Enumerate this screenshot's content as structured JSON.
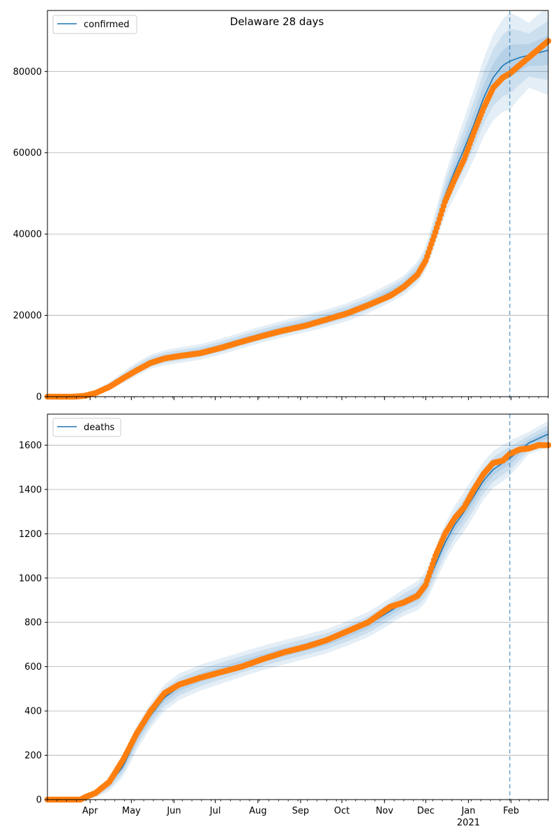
{
  "figure": {
    "title": "Delaware 28 days"
  },
  "colors": {
    "fit_line": "#1f77b4",
    "band": "#1f77b4",
    "observed": "#ff7f0e",
    "grid": "#b0b0b0",
    "forecast_line": "#1f77b4"
  },
  "chart_data": [
    {
      "type": "line",
      "name": "confirmed-panel",
      "legend": {
        "label": "confirmed",
        "placement": "upper-left"
      },
      "grid": "horizontal",
      "xlim": [
        "2020-03-01",
        "2021-02-28"
      ],
      "ylim": [
        0,
        95000
      ],
      "yticks": [
        0,
        20000,
        40000,
        60000,
        80000
      ],
      "forecast_start": "2021-01-31",
      "series": [
        {
          "name": "confirmed",
          "style": "model-fit-line",
          "x": [
            "2020-03-01",
            "2020-03-20",
            "2020-03-28",
            "2020-04-05",
            "2020-04-15",
            "2020-04-25",
            "2020-05-05",
            "2020-05-15",
            "2020-05-25",
            "2020-06-05",
            "2020-06-20",
            "2020-07-05",
            "2020-07-20",
            "2020-08-05",
            "2020-08-20",
            "2020-09-05",
            "2020-09-20",
            "2020-10-05",
            "2020-10-20",
            "2020-11-05",
            "2020-11-15",
            "2020-11-25",
            "2020-12-01",
            "2020-12-08",
            "2020-12-15",
            "2020-12-22",
            "2020-12-29",
            "2021-01-05",
            "2021-01-12",
            "2021-01-19",
            "2021-01-26",
            "2021-01-31",
            "2021-02-07",
            "2021-02-14",
            "2021-02-21",
            "2021-02-28"
          ],
          "y": [
            0,
            0,
            300,
            1100,
            2600,
            4700,
            6800,
            8600,
            9600,
            10200,
            11000,
            12300,
            13800,
            15400,
            16700,
            18000,
            19300,
            20800,
            22800,
            25500,
            27400,
            30500,
            34000,
            41500,
            49500,
            55500,
            61000,
            67000,
            73500,
            78500,
            81500,
            82500,
            83400,
            84000,
            84600,
            85200
          ]
        },
        {
          "name": "confirmed observed",
          "style": "observed-markers",
          "x": [
            "2020-03-01",
            "2020-03-20",
            "2020-03-28",
            "2020-04-05",
            "2020-04-15",
            "2020-04-25",
            "2020-05-05",
            "2020-05-15",
            "2020-05-25",
            "2020-06-05",
            "2020-06-20",
            "2020-07-05",
            "2020-07-20",
            "2020-08-05",
            "2020-08-20",
            "2020-09-05",
            "2020-09-20",
            "2020-10-05",
            "2020-10-20",
            "2020-11-05",
            "2020-11-15",
            "2020-11-25",
            "2020-12-01",
            "2020-12-08",
            "2020-12-15",
            "2020-12-22",
            "2020-12-29",
            "2021-01-05",
            "2021-01-12",
            "2021-01-19",
            "2021-01-26",
            "2021-01-31",
            "2021-02-07",
            "2021-02-14",
            "2021-02-21",
            "2021-02-28"
          ],
          "y": [
            0,
            0,
            200,
            900,
            2400,
            4500,
            6500,
            8300,
            9400,
            10000,
            10700,
            12000,
            13500,
            15000,
            16300,
            17500,
            19000,
            20500,
            22500,
            24800,
            27000,
            30000,
            33500,
            40500,
            48000,
            53500,
            58500,
            65000,
            71000,
            76000,
            78500,
            79500,
            81500,
            83500,
            85500,
            87500
          ]
        }
      ],
      "band_half_widths": {
        "x": [
          "2020-03-01",
          "2020-04-01",
          "2020-05-01",
          "2020-06-01",
          "2020-08-01",
          "2020-10-01",
          "2020-11-15",
          "2020-12-01",
          "2020-12-15",
          "2021-01-01",
          "2021-01-15",
          "2021-01-31",
          "2021-02-14",
          "2021-02-28"
        ],
        "outer": [
          0,
          400,
          1600,
          1900,
          2000,
          2200,
          2400,
          3000,
          5000,
          8000,
          10000,
          12000,
          8000,
          11000
        ],
        "middle": [
          0,
          260,
          1050,
          1250,
          1300,
          1450,
          1600,
          2000,
          3300,
          5300,
          6600,
          8000,
          5300,
          7300
        ],
        "inner": [
          0,
          130,
          520,
          620,
          650,
          720,
          800,
          1000,
          1650,
          2650,
          3300,
          4000,
          2650,
          3650
        ]
      }
    },
    {
      "type": "line",
      "name": "deaths-panel",
      "legend": {
        "label": "deaths",
        "placement": "upper-left"
      },
      "grid": "horizontal",
      "xlim": [
        "2020-03-01",
        "2021-02-28"
      ],
      "ylim": [
        0,
        1740
      ],
      "yticks": [
        0,
        200,
        400,
        600,
        800,
        1000,
        1200,
        1400,
        1600
      ],
      "forecast_start": "2021-01-31",
      "xtick_labels": [
        "Apr",
        "May",
        "Jun",
        "Jul",
        "Aug",
        "Sep",
        "Oct",
        "Nov",
        "Dec",
        "Jan",
        "Feb"
      ],
      "xtick_dates": [
        "2020-04-01",
        "2020-05-01",
        "2020-06-01",
        "2020-07-01",
        "2020-08-01",
        "2020-09-01",
        "2020-10-01",
        "2020-11-01",
        "2020-12-01",
        "2021-01-01",
        "2021-02-01"
      ],
      "xtick_year_label": "2021",
      "series": [
        {
          "name": "deaths",
          "style": "model-fit-line",
          "x": [
            "2020-03-01",
            "2020-03-28",
            "2020-04-05",
            "2020-04-15",
            "2020-04-25",
            "2020-05-05",
            "2020-05-15",
            "2020-05-25",
            "2020-06-05",
            "2020-06-20",
            "2020-07-05",
            "2020-07-20",
            "2020-08-05",
            "2020-08-20",
            "2020-09-05",
            "2020-09-20",
            "2020-10-05",
            "2020-10-20",
            "2020-11-05",
            "2020-11-15",
            "2020-11-25",
            "2020-12-01",
            "2020-12-08",
            "2020-12-15",
            "2020-12-22",
            "2020-12-29",
            "2021-01-05",
            "2021-01-12",
            "2021-01-19",
            "2021-01-26",
            "2021-01-31",
            "2021-02-07",
            "2021-02-14",
            "2021-02-21",
            "2021-02-28"
          ],
          "y": [
            0,
            5,
            25,
            70,
            150,
            280,
            380,
            460,
            510,
            550,
            580,
            610,
            640,
            665,
            690,
            715,
            750,
            790,
            850,
            890,
            920,
            960,
            1060,
            1160,
            1240,
            1300,
            1370,
            1440,
            1490,
            1520,
            1540,
            1575,
            1610,
            1630,
            1650
          ]
        },
        {
          "name": "deaths observed",
          "style": "observed-markers",
          "x": [
            "2020-03-01",
            "2020-03-25",
            "2020-03-28",
            "2020-04-05",
            "2020-04-15",
            "2020-04-25",
            "2020-05-05",
            "2020-05-15",
            "2020-05-25",
            "2020-06-05",
            "2020-06-20",
            "2020-07-05",
            "2020-07-20",
            "2020-08-05",
            "2020-08-20",
            "2020-09-05",
            "2020-09-20",
            "2020-10-05",
            "2020-10-20",
            "2020-11-05",
            "2020-11-15",
            "2020-11-25",
            "2020-12-01",
            "2020-12-08",
            "2020-12-15",
            "2020-12-22",
            "2020-12-29",
            "2021-01-05",
            "2021-01-12",
            "2021-01-19",
            "2021-01-26",
            "2021-01-31",
            "2021-02-07",
            "2021-02-14",
            "2021-02-21",
            "2021-02-28"
          ],
          "y": [
            0,
            0,
            10,
            30,
            80,
            180,
            300,
            400,
            480,
            520,
            550,
            575,
            600,
            635,
            665,
            690,
            720,
            760,
            800,
            870,
            890,
            920,
            970,
            1100,
            1200,
            1270,
            1320,
            1400,
            1470,
            1520,
            1530,
            1560,
            1580,
            1585,
            1600,
            1600
          ]
        }
      ],
      "band_half_widths": {
        "x": [
          "2020-03-01",
          "2020-04-01",
          "2020-05-01",
          "2020-06-01",
          "2020-08-01",
          "2020-10-01",
          "2020-11-15",
          "2020-12-01",
          "2020-12-15",
          "2021-01-01",
          "2021-01-15",
          "2021-01-31",
          "2021-02-14",
          "2021-02-28"
        ],
        "outer": [
          0,
          10,
          55,
          60,
          55,
          55,
          60,
          70,
          85,
          90,
          85,
          80,
          50,
          60
        ],
        "middle": [
          0,
          7,
          36,
          40,
          36,
          36,
          40,
          46,
          56,
          60,
          56,
          53,
          33,
          40
        ],
        "inner": [
          0,
          3,
          18,
          20,
          18,
          18,
          20,
          23,
          28,
          30,
          28,
          26,
          16,
          20
        ]
      }
    }
  ]
}
